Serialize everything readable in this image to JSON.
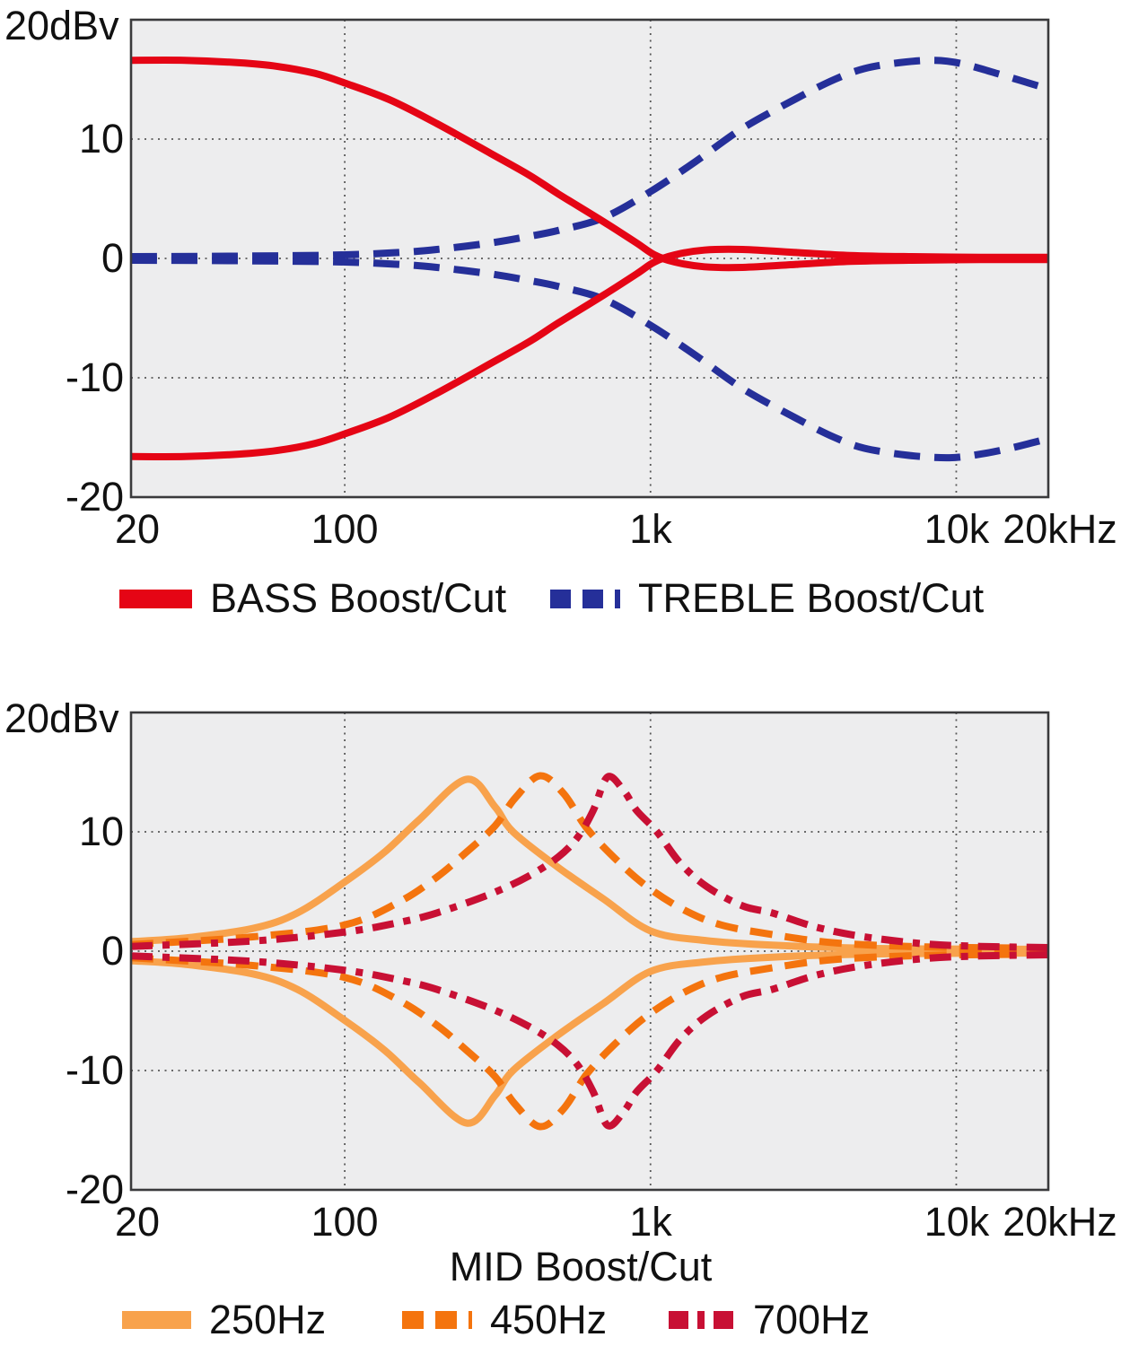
{
  "theme": {
    "page_bg": "#ffffff",
    "plot_bg": "#ededee",
    "grid_color": "#3f3f3f",
    "frame_color": "#3a3a3c",
    "text_color": "#111111",
    "bass_red": "#e50515",
    "treble_navy": "#252f99",
    "mid250_orange": "#f8a24c",
    "mid450_orange": "#f4740e",
    "mid700_crimson": "#c81034"
  },
  "chart_data": [
    {
      "type": "line",
      "name": "bass-treble-response",
      "y_axis_top_label": "20dBv",
      "x_label": "",
      "x_scale": "log",
      "x_range_hz": [
        20,
        20000
      ],
      "y_range_db": [
        -20,
        20
      ],
      "grid": "dotted",
      "legend_position": "bottom",
      "x_ticks": [
        {
          "f": 20,
          "label": "20",
          "grid": false
        },
        {
          "f": 100,
          "label": "100",
          "grid": true
        },
        {
          "f": 1000,
          "label": "1k",
          "grid": true
        },
        {
          "f": 10000,
          "label": "10k",
          "grid": true
        },
        {
          "f": 20000,
          "label": "20kHz",
          "grid": false
        }
      ],
      "y_ticks": [
        {
          "db": 10,
          "label": "10",
          "grid": true
        },
        {
          "db": 0,
          "label": "0",
          "grid": true
        },
        {
          "db": -10,
          "label": "-10",
          "grid": true
        },
        {
          "db": -20,
          "label": "-20",
          "grid": false
        }
      ],
      "legend": [
        {
          "label": "BASS Boost/Cut",
          "color": "#e50515",
          "dash": "none",
          "legend_dash": "none"
        },
        {
          "label": "TREBLE Boost/Cut",
          "color": "#252f99",
          "dash": [
            29,
            16
          ],
          "legend_dash": [
            23,
            13
          ]
        }
      ],
      "series": [
        {
          "name": "treble-boost",
          "legend": 1,
          "color": "#252f99",
          "dash": [
            29,
            16
          ],
          "points": [
            [
              20,
              0.15
            ],
            [
              50,
              0.2
            ],
            [
              100,
              0.3
            ],
            [
              150,
              0.5
            ],
            [
              200,
              0.75
            ],
            [
              300,
              1.3
            ],
            [
              400,
              1.85
            ],
            [
              500,
              2.35
            ],
            [
              700,
              3.4
            ],
            [
              1000,
              5.6
            ],
            [
              1400,
              8.1
            ],
            [
              2000,
              10.9
            ],
            [
              3000,
              13.4
            ],
            [
              4000,
              15.0
            ],
            [
              5000,
              15.9
            ],
            [
              6500,
              16.4
            ],
            [
              8500,
              16.6
            ],
            [
              10500,
              16.3
            ],
            [
              14000,
              15.4
            ],
            [
              20000,
              14.2
            ]
          ]
        },
        {
          "name": "treble-cut",
          "legend": 1,
          "color": "#252f99",
          "dash": [
            29,
            16
          ],
          "points": [
            [
              20,
              -0.15
            ],
            [
              50,
              -0.2
            ],
            [
              100,
              -0.3
            ],
            [
              150,
              -0.5
            ],
            [
              200,
              -0.75
            ],
            [
              300,
              -1.3
            ],
            [
              400,
              -1.85
            ],
            [
              500,
              -2.35
            ],
            [
              700,
              -3.4
            ],
            [
              1000,
              -5.6
            ],
            [
              1400,
              -8.1
            ],
            [
              2000,
              -10.9
            ],
            [
              3000,
              -13.4
            ],
            [
              4000,
              -15.0
            ],
            [
              5000,
              -15.9
            ],
            [
              7000,
              -16.5
            ],
            [
              9500,
              -16.7
            ],
            [
              12000,
              -16.4
            ],
            [
              15000,
              -15.9
            ],
            [
              20000,
              -15.1
            ]
          ]
        },
        {
          "name": "bass-boost",
          "legend": 0,
          "color": "#e50515",
          "dash": "none",
          "points": [
            [
              20,
              16.6
            ],
            [
              30,
              16.6
            ],
            [
              45,
              16.4
            ],
            [
              60,
              16.1
            ],
            [
              80,
              15.5
            ],
            [
              100,
              14.7
            ],
            [
              140,
              13.3
            ],
            [
              200,
              11.3
            ],
            [
              300,
              8.8
            ],
            [
              400,
              7.0
            ],
            [
              500,
              5.4
            ],
            [
              700,
              3.1
            ],
            [
              900,
              1.3
            ],
            [
              1030,
              0.3
            ],
            [
              1200,
              -0.3
            ],
            [
              1500,
              -0.7
            ],
            [
              2000,
              -0.75
            ],
            [
              3000,
              -0.5
            ],
            [
              4500,
              -0.25
            ],
            [
              7000,
              -0.15
            ],
            [
              12000,
              -0.1
            ],
            [
              20000,
              -0.1
            ]
          ]
        },
        {
          "name": "bass-cut",
          "legend": 0,
          "color": "#e50515",
          "dash": "none",
          "points": [
            [
              20,
              -16.6
            ],
            [
              30,
              -16.6
            ],
            [
              45,
              -16.4
            ],
            [
              60,
              -16.1
            ],
            [
              80,
              -15.5
            ],
            [
              100,
              -14.7
            ],
            [
              140,
              -13.3
            ],
            [
              200,
              -11.3
            ],
            [
              300,
              -8.8
            ],
            [
              400,
              -7.0
            ],
            [
              500,
              -5.4
            ],
            [
              700,
              -3.1
            ],
            [
              900,
              -1.3
            ],
            [
              1030,
              -0.3
            ],
            [
              1200,
              0.3
            ],
            [
              1500,
              0.7
            ],
            [
              2000,
              0.75
            ],
            [
              3000,
              0.5
            ],
            [
              4500,
              0.25
            ],
            [
              7000,
              0.15
            ],
            [
              12000,
              0.1
            ],
            [
              20000,
              0.1
            ]
          ]
        }
      ]
    },
    {
      "type": "line",
      "name": "mid-response",
      "y_axis_top_label": "20dBv",
      "x_label": "MID Boost/Cut",
      "x_scale": "log",
      "x_range_hz": [
        20,
        20000
      ],
      "y_range_db": [
        -20,
        20
      ],
      "grid": "dotted",
      "legend_position": "bottom",
      "x_ticks": [
        {
          "f": 20,
          "label": "20",
          "grid": false
        },
        {
          "f": 100,
          "label": "100",
          "grid": true
        },
        {
          "f": 1000,
          "label": "1k",
          "grid": true
        },
        {
          "f": 10000,
          "label": "10k",
          "grid": true
        },
        {
          "f": 20000,
          "label": "20kHz",
          "grid": false
        }
      ],
      "y_ticks": [
        {
          "db": 10,
          "label": "10",
          "grid": true
        },
        {
          "db": 0,
          "label": "0",
          "grid": true
        },
        {
          "db": -10,
          "label": "-10",
          "grid": true
        },
        {
          "db": -20,
          "label": "-20",
          "grid": false
        }
      ],
      "legend": [
        {
          "label": "250Hz",
          "color": "#f8a24c",
          "dash": "none",
          "legend_dash": "none"
        },
        {
          "label": "450Hz",
          "color": "#f4740e",
          "dash": [
            25,
            14
          ],
          "legend_dash": [
            24,
            13
          ]
        },
        {
          "label": "700Hz",
          "color": "#c81034",
          "dash": [
            24,
            11,
            8,
            11
          ],
          "legend_dash": [
            22,
            10,
            8,
            10
          ]
        }
      ],
      "series": [
        {
          "name": "mid-250-boost",
          "legend": 0,
          "color": "#f8a24c",
          "dash": "none",
          "points": [
            [
              20,
              0.8
            ],
            [
              30,
              1.1
            ],
            [
              50,
              1.9
            ],
            [
              70,
              3.2
            ],
            [
              100,
              5.8
            ],
            [
              135,
              8.3
            ],
            [
              175,
              11.0
            ],
            [
              250,
              14.4
            ],
            [
              310,
              12.1
            ],
            [
              355,
              10.0
            ],
            [
              500,
              7.0
            ],
            [
              700,
              4.4
            ],
            [
              1000,
              1.7
            ],
            [
              1500,
              0.9
            ],
            [
              2500,
              0.5
            ],
            [
              5000,
              0.25
            ],
            [
              10000,
              0.18
            ],
            [
              20000,
              0.15
            ]
          ]
        },
        {
          "name": "mid-250-cut",
          "legend": 0,
          "color": "#f8a24c",
          "dash": "none",
          "points": [
            [
              20,
              -0.8
            ],
            [
              30,
              -1.1
            ],
            [
              50,
              -1.9
            ],
            [
              70,
              -3.2
            ],
            [
              100,
              -5.8
            ],
            [
              135,
              -8.3
            ],
            [
              175,
              -11.0
            ],
            [
              250,
              -14.4
            ],
            [
              310,
              -12.1
            ],
            [
              355,
              -10.0
            ],
            [
              500,
              -7.0
            ],
            [
              700,
              -4.4
            ],
            [
              1000,
              -1.7
            ],
            [
              1500,
              -0.9
            ],
            [
              2500,
              -0.5
            ],
            [
              5000,
              -0.25
            ],
            [
              10000,
              -0.18
            ],
            [
              20000,
              -0.15
            ]
          ]
        },
        {
          "name": "mid-450-boost",
          "legend": 1,
          "color": "#f4740e",
          "dash": [
            25,
            14
          ],
          "points": [
            [
              20,
              0.55
            ],
            [
              50,
              1.2
            ],
            [
              100,
              2.2
            ],
            [
              150,
              4.1
            ],
            [
              200,
              6.2
            ],
            [
              250,
              8.3
            ],
            [
              310,
              10.5
            ],
            [
              360,
              12.8
            ],
            [
              435,
              14.7
            ],
            [
              520,
              13.2
            ],
            [
              623,
              10.2
            ],
            [
              800,
              7.3
            ],
            [
              1000,
              5.2
            ],
            [
              1300,
              3.4
            ],
            [
              1700,
              2.2
            ],
            [
              2500,
              1.4
            ],
            [
              4000,
              0.7
            ],
            [
              8000,
              0.35
            ],
            [
              20000,
              0.25
            ]
          ]
        },
        {
          "name": "mid-450-cut",
          "legend": 1,
          "color": "#f4740e",
          "dash": [
            25,
            14
          ],
          "points": [
            [
              20,
              -0.55
            ],
            [
              50,
              -1.2
            ],
            [
              100,
              -2.2
            ],
            [
              150,
              -4.1
            ],
            [
              200,
              -6.2
            ],
            [
              250,
              -8.3
            ],
            [
              310,
              -10.5
            ],
            [
              360,
              -12.8
            ],
            [
              435,
              -14.7
            ],
            [
              520,
              -13.2
            ],
            [
              623,
              -10.2
            ],
            [
              800,
              -7.3
            ],
            [
              1000,
              -5.2
            ],
            [
              1300,
              -3.4
            ],
            [
              1700,
              -2.2
            ],
            [
              2500,
              -1.4
            ],
            [
              4000,
              -0.7
            ],
            [
              8000,
              -0.35
            ],
            [
              20000,
              -0.25
            ]
          ]
        },
        {
          "name": "mid-700-boost",
          "legend": 2,
          "color": "#c81034",
          "dash": [
            24,
            11,
            8,
            11
          ],
          "points": [
            [
              20,
              0.4
            ],
            [
              50,
              0.85
            ],
            [
              100,
              1.6
            ],
            [
              150,
              2.4
            ],
            [
              200,
              3.2
            ],
            [
              300,
              4.8
            ],
            [
              400,
              6.3
            ],
            [
              500,
              7.9
            ],
            [
              580,
              9.6
            ],
            [
              650,
              11.8
            ],
            [
              724,
              14.6
            ],
            [
              820,
              13.4
            ],
            [
              900,
              11.8
            ],
            [
              1050,
              10.0
            ],
            [
              1250,
              7.4
            ],
            [
              1530,
              5.4
            ],
            [
              2000,
              3.8
            ],
            [
              2500,
              3.2
            ],
            [
              3500,
              2.0
            ],
            [
              5000,
              1.2
            ],
            [
              8000,
              0.6
            ],
            [
              12000,
              0.4
            ],
            [
              20000,
              0.3
            ]
          ]
        },
        {
          "name": "mid-700-cut",
          "legend": 2,
          "color": "#c81034",
          "dash": [
            24,
            11,
            8,
            11
          ],
          "points": [
            [
              20,
              -0.4
            ],
            [
              50,
              -0.85
            ],
            [
              100,
              -1.6
            ],
            [
              150,
              -2.4
            ],
            [
              200,
              -3.2
            ],
            [
              300,
              -4.8
            ],
            [
              400,
              -6.3
            ],
            [
              500,
              -7.9
            ],
            [
              580,
              -9.6
            ],
            [
              650,
              -11.8
            ],
            [
              724,
              -14.6
            ],
            [
              820,
              -13.4
            ],
            [
              900,
              -11.8
            ],
            [
              1050,
              -10.0
            ],
            [
              1250,
              -7.4
            ],
            [
              1530,
              -5.4
            ],
            [
              2000,
              -3.8
            ],
            [
              2500,
              -3.2
            ],
            [
              3500,
              -2.0
            ],
            [
              5000,
              -1.2
            ],
            [
              8000,
              -0.6
            ],
            [
              12000,
              -0.4
            ],
            [
              20000,
              -0.3
            ]
          ]
        }
      ]
    }
  ]
}
